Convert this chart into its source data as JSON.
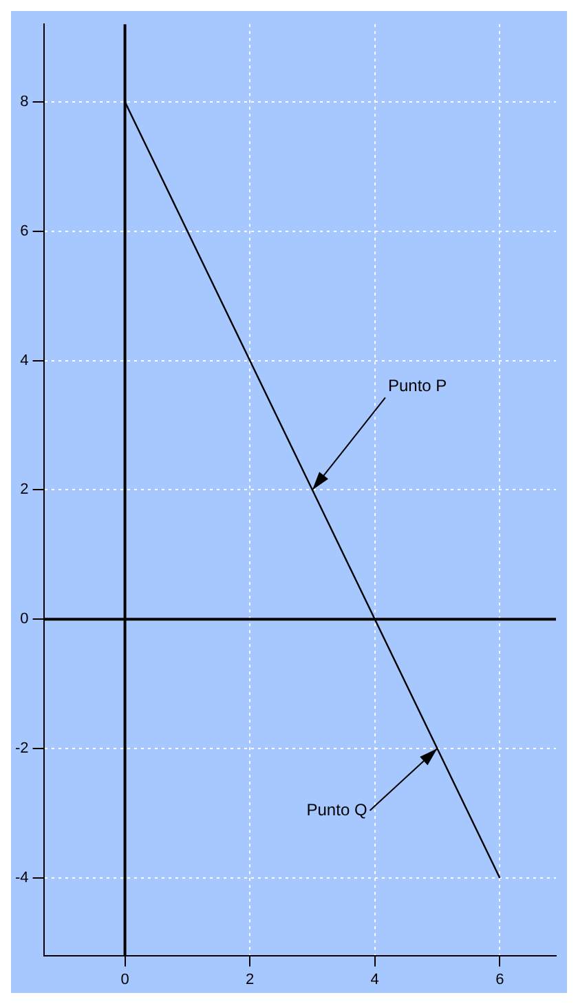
{
  "chart_data": {
    "type": "line",
    "x": [
      0,
      6
    ],
    "series": [
      {
        "color": "#000000",
        "values": [
          8,
          -4
        ]
      }
    ],
    "xlim": [
      -1.3,
      6.9
    ],
    "xticks": [
      0,
      2,
      4,
      6
    ],
    "ylim": [
      -5.2,
      9.2
    ],
    "yticks": [
      -4,
      -2,
      0,
      2,
      4,
      6,
      8
    ],
    "grid": true,
    "marker": "none",
    "line_style": "solid",
    "legend": false,
    "annotations": [
      {
        "text": "Punto P",
        "x": 3,
        "y": 2
      },
      {
        "text": "Punto Q",
        "x": 5,
        "y": -2
      }
    ]
  }
}
